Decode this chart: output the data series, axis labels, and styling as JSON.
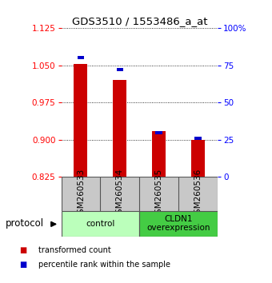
{
  "title": "GDS3510 / 1553486_a_at",
  "samples": [
    "GSM260533",
    "GSM260534",
    "GSM260535",
    "GSM260536"
  ],
  "red_values": [
    1.053,
    1.02,
    0.918,
    0.9
  ],
  "blue_percentiles": [
    0.79,
    0.71,
    0.285,
    0.25
  ],
  "baseline": 0.825,
  "ylim_left": [
    0.825,
    1.125
  ],
  "ylim_right": [
    0.0,
    1.0
  ],
  "yticks_left": [
    0.825,
    0.9,
    0.975,
    1.05,
    1.125
  ],
  "yticks_right": [
    0.0,
    0.25,
    0.5,
    0.75,
    1.0
  ],
  "ytick_labels_right": [
    "0",
    "25",
    "50",
    "75",
    "100%"
  ],
  "bar_color": "#cc0000",
  "blue_color": "#0000cc",
  "bar_width": 0.35,
  "groups": [
    {
      "label": "control",
      "samples": [
        0,
        1
      ],
      "color": "#bbffbb"
    },
    {
      "label": "CLDN1\noverexpression",
      "samples": [
        2,
        3
      ],
      "color": "#44cc44"
    }
  ],
  "legend_items": [
    {
      "color": "#cc0000",
      "label": "transformed count"
    },
    {
      "color": "#0000cc",
      "label": "percentile rank within the sample"
    }
  ],
  "background_color": "#ffffff",
  "plot_bg_color": "#ffffff",
  "tick_area_color": "#c8c8c8",
  "protocol_label": "protocol"
}
